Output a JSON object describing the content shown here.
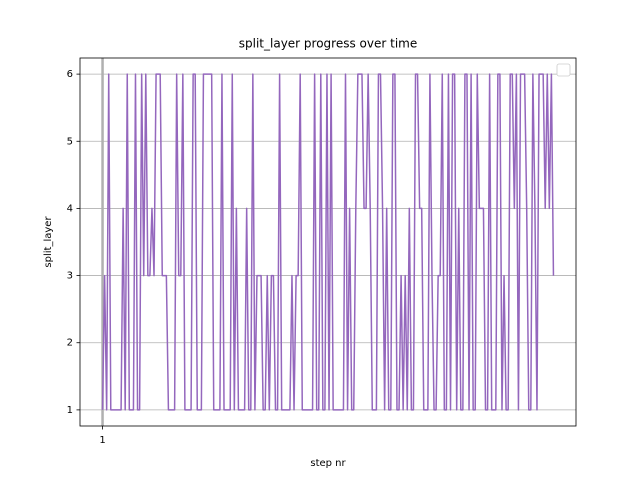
{
  "chart_data": {
    "type": "line",
    "title": "split_layer progress over time",
    "x_label": "step nr",
    "y_label": "split_layer",
    "color": "#9467bd",
    "grid": true,
    "x": [
      1,
      2,
      3,
      4,
      5,
      6,
      7,
      8,
      9,
      10,
      11,
      12,
      13,
      14,
      15,
      16,
      17,
      18,
      19,
      20,
      21,
      22,
      23,
      24,
      25,
      26,
      27,
      28,
      29,
      30,
      31,
      32,
      33,
      34,
      35,
      36,
      37,
      38,
      39,
      40,
      41,
      42,
      43,
      44,
      45,
      46,
      47,
      48,
      49,
      50,
      51,
      52,
      53,
      54,
      55,
      56,
      57,
      58,
      59,
      60,
      61,
      62,
      63,
      64,
      65,
      66,
      67,
      68,
      69,
      70,
      71,
      72,
      73,
      74,
      75,
      76,
      77,
      78,
      79,
      80,
      81,
      82,
      83,
      84,
      85,
      86,
      87,
      88,
      89,
      90,
      91,
      92,
      93,
      94,
      95,
      96,
      97,
      98,
      99,
      100,
      101,
      102,
      103,
      104,
      105,
      106,
      107,
      108,
      109,
      110,
      111,
      112,
      113,
      114,
      115,
      116,
      117,
      118,
      119,
      120,
      121,
      122,
      123,
      124,
      125,
      126,
      127,
      128,
      129,
      130,
      131,
      132,
      133,
      134,
      135,
      136,
      137,
      138,
      139,
      140,
      141,
      142,
      143,
      144,
      145,
      146,
      147,
      148,
      149,
      150,
      151,
      152,
      153,
      154,
      155,
      156,
      157,
      158,
      159,
      160,
      161,
      162,
      163,
      164,
      165,
      166,
      167,
      168,
      169,
      170,
      171,
      172,
      173,
      174,
      175,
      176,
      177,
      178,
      179,
      180,
      181,
      182,
      183,
      184,
      185,
      186,
      187,
      188,
      189,
      190,
      191,
      192,
      193,
      194,
      195,
      196,
      197,
      198,
      199,
      200,
      201,
      202,
      203,
      204,
      205,
      206,
      207,
      208,
      209,
      210,
      211,
      212,
      213,
      214,
      215,
      216,
      217,
      218,
      219,
      220
    ],
    "values": [
      1,
      3,
      1,
      6,
      1,
      1,
      1,
      1,
      1,
      1,
      4,
      1,
      6,
      1,
      1,
      1,
      6,
      1,
      1,
      6,
      3,
      6,
      3,
      3,
      4,
      3,
      6,
      6,
      6,
      3,
      3,
      3,
      1,
      1,
      1,
      1,
      6,
      3,
      3,
      6,
      1,
      1,
      1,
      1,
      6,
      6,
      1,
      1,
      1,
      6,
      6,
      6,
      6,
      6,
      1,
      1,
      1,
      1,
      6,
      1,
      1,
      1,
      1,
      6,
      1,
      4,
      1,
      1,
      1,
      1,
      4,
      1,
      1,
      6,
      1,
      3,
      3,
      3,
      1,
      1,
      3,
      1,
      3,
      3,
      1,
      1,
      6,
      1,
      1,
      1,
      1,
      1,
      3,
      1,
      3,
      3,
      6,
      1,
      1,
      1,
      1,
      1,
      1,
      6,
      1,
      1,
      6,
      1,
      1,
      6,
      1,
      6,
      1,
      1,
      1,
      1,
      1,
      1,
      6,
      1,
      4,
      1,
      1,
      4,
      6,
      6,
      6,
      4,
      4,
      6,
      4,
      1,
      1,
      1,
      6,
      6,
      4,
      1,
      4,
      1,
      1,
      6,
      6,
      1,
      1,
      3,
      1,
      3,
      1,
      4,
      1,
      1,
      6,
      6,
      4,
      4,
      1,
      1,
      1,
      6,
      3,
      1,
      1,
      3,
      3,
      6,
      1,
      1,
      6,
      1,
      6,
      6,
      1,
      4,
      1,
      1,
      6,
      6,
      1,
      6,
      1,
      1,
      6,
      4,
      4,
      4,
      1,
      1,
      6,
      1,
      1,
      1,
      6,
      6,
      1,
      3,
      1,
      1,
      6,
      6,
      4,
      6,
      1,
      6,
      6,
      6,
      4,
      1,
      1,
      6,
      4,
      1,
      6,
      6,
      6,
      4,
      6,
      4,
      6,
      3
    ],
    "xlim": [
      -9.95,
      230.95
    ],
    "xticks": [
      1
    ],
    "ylim": [
      0.76,
      6.24
    ],
    "yticks": [
      1,
      2,
      3,
      4,
      5,
      6
    ]
  }
}
